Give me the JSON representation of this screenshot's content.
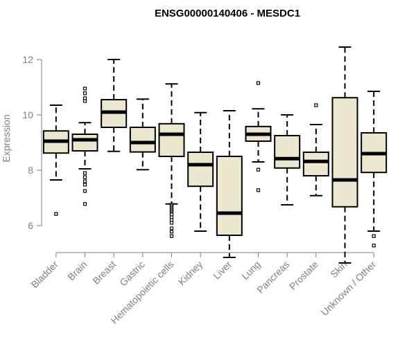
{
  "chart_data": {
    "type": "boxplot",
    "title": "ENSG00000140406 - MESDC1",
    "xlabel": "",
    "ylabel": "Expression",
    "ylim": [
      4.6,
      12.6
    ],
    "yticks": [
      6,
      8,
      10,
      12
    ],
    "categories": [
      "Bladder",
      "Brain",
      "Breast",
      "Gastric",
      "Hematopoietic cells",
      "Kidney",
      "Liver",
      "Lung",
      "Pancreas",
      "Prostate",
      "Skin",
      "Unknown / Other"
    ],
    "boxes": [
      {
        "whisker_low": 7.65,
        "q1": 8.62,
        "median": 9.05,
        "q3": 9.42,
        "whisker_high": 10.35,
        "outliers": [
          6.42
        ]
      },
      {
        "whisker_low": 8.05,
        "q1": 8.7,
        "median": 9.1,
        "q3": 9.3,
        "whisker_high": 9.72,
        "outliers": [
          10.95,
          10.78,
          10.6,
          10.5,
          7.9,
          7.75,
          7.6,
          7.48,
          7.25,
          6.78
        ]
      },
      {
        "whisker_low": 8.68,
        "q1": 9.55,
        "median": 10.1,
        "q3": 10.55,
        "whisker_high": 12.0,
        "outliers": []
      },
      {
        "whisker_low": 8.02,
        "q1": 8.66,
        "median": 9.0,
        "q3": 9.55,
        "whisker_high": 10.57,
        "outliers": []
      },
      {
        "whisker_low": 6.78,
        "q1": 8.5,
        "median": 9.3,
        "q3": 9.68,
        "whisker_high": 11.12,
        "outliers": [
          6.75,
          6.7,
          6.65,
          6.6,
          6.55,
          6.5,
          6.45,
          6.4,
          6.3,
          6.2,
          6.1,
          5.9,
          5.78,
          5.62
        ]
      },
      {
        "whisker_low": 5.8,
        "q1": 7.42,
        "median": 8.2,
        "q3": 8.65,
        "whisker_high": 10.08,
        "outliers": []
      },
      {
        "whisker_low": 4.85,
        "q1": 5.65,
        "median": 6.45,
        "q3": 8.5,
        "whisker_high": 10.15,
        "outliers": []
      },
      {
        "whisker_low": 8.3,
        "q1": 9.05,
        "median": 9.3,
        "q3": 9.58,
        "whisker_high": 10.22,
        "outliers": [
          11.15,
          8.02,
          7.28
        ]
      },
      {
        "whisker_low": 6.75,
        "q1": 8.08,
        "median": 8.42,
        "q3": 9.25,
        "whisker_high": 10.0,
        "outliers": []
      },
      {
        "whisker_low": 7.08,
        "q1": 7.8,
        "median": 8.32,
        "q3": 8.65,
        "whisker_high": 9.65,
        "outliers": [
          10.35
        ]
      },
      {
        "whisker_low": 4.65,
        "q1": 6.68,
        "median": 7.65,
        "q3": 10.62,
        "whisker_high": 12.45,
        "outliers": []
      },
      {
        "whisker_low": 5.8,
        "q1": 7.92,
        "median": 8.6,
        "q3": 9.35,
        "whisker_high": 10.85,
        "outliers": [
          5.62,
          5.28
        ]
      }
    ],
    "colors": {
      "box_fill": "#ede7cf",
      "stroke": "#000000",
      "axis_text": "#7f7f7f"
    }
  }
}
